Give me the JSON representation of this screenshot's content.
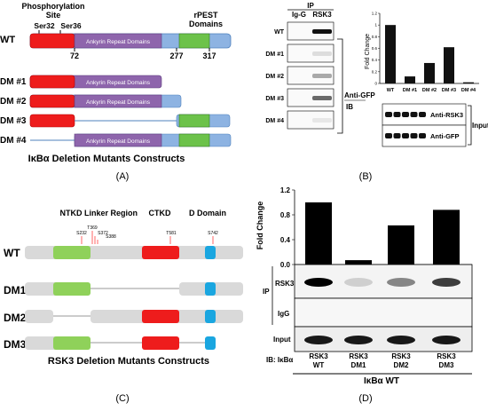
{
  "panelA": {
    "title_phos": "Phosphorylation",
    "title_site": "Site",
    "ser32": "Ser32",
    "ser36": "Ser36",
    "rpest": "rPEST",
    "domains": "Domains",
    "wt": "WT",
    "ankyrin": "Ankyrin Repeat Domains",
    "pos72": "72",
    "pos277": "277",
    "pos317": "317",
    "dm1": "DM #1",
    "dm2": "DM #2",
    "dm3": "DM #3",
    "dm4": "DM #4",
    "caption": "IκBα Deletion Mutants Constructs",
    "label": "(A)"
  },
  "panelB": {
    "ip": "IP",
    "igg": "Ig-G",
    "rsk3": "RSK3",
    "rows": [
      "WT",
      "DM #1",
      "DM #2",
      "DM #3",
      "DM #4"
    ],
    "anti_gfp": "Anti-GFP",
    "ib": "IB",
    "anti_rsk3": "Anti-RSK3",
    "anti_gfp2": "Anti-GFP",
    "input": "Input",
    "label": "(B)"
  },
  "chart_data": [
    {
      "type": "bar",
      "panel": "B",
      "ylabel": "Fold Change",
      "categories": [
        "WT",
        "DM #1",
        "DM #2",
        "DM #3",
        "DM #4"
      ],
      "values": [
        1.0,
        0.12,
        0.35,
        0.62,
        0.02
      ],
      "ylim": [
        0,
        1.2
      ],
      "yticks": [
        "0",
        "0.2",
        "0.4",
        "0.6",
        "0.8",
        "1",
        "1.2"
      ]
    },
    {
      "type": "bar",
      "panel": "D",
      "ylabel": "Fold Change",
      "categories": [
        "RSK3 WT",
        "RSK3 DM1",
        "RSK3 DM2",
        "RSK3 DM3"
      ],
      "values": [
        1.0,
        0.07,
        0.63,
        0.88
      ],
      "ylim": [
        0,
        1.2
      ],
      "yticks": [
        "0.0",
        "0.4",
        "0.8",
        "1.2"
      ]
    }
  ],
  "panelC": {
    "ntkd": "NTKD",
    "linker": "Linker Region",
    "ctkd": "CTKD",
    "ddomain": "D Domain",
    "s232": "S232",
    "t369": "T369",
    "s372": "S372",
    "s388": "S388",
    "t581": "T581",
    "s742": "S742",
    "wt": "WT",
    "dm1": "DM1",
    "dm2": "DM2",
    "dm3": "DM3",
    "caption": "RSK3 Deletion Mutants Constructs",
    "label": "(C)"
  },
  "panelD": {
    "ylabel": "Fold Change",
    "ip": "IP",
    "rsk3": "RSK3",
    "igg": "IgG",
    "input": "Input",
    "ib": "IB: IκBα",
    "lanes": [
      {
        "top": "RSK3",
        "bottom": "WT"
      },
      {
        "top": "RSK3",
        "bottom": "DM1"
      },
      {
        "top": "RSK3",
        "bottom": "DM2"
      },
      {
        "top": "RSK3",
        "bottom": "DM3"
      }
    ],
    "footer": "IκBα WT",
    "label": "(D)"
  },
  "colors": {
    "red": "#ee1c1c",
    "purple": "#8e65ac",
    "blue": "#8db3e2",
    "green": "#6cc24a",
    "gray": "#d9d9d9",
    "cyan": "#1aa6e0"
  }
}
